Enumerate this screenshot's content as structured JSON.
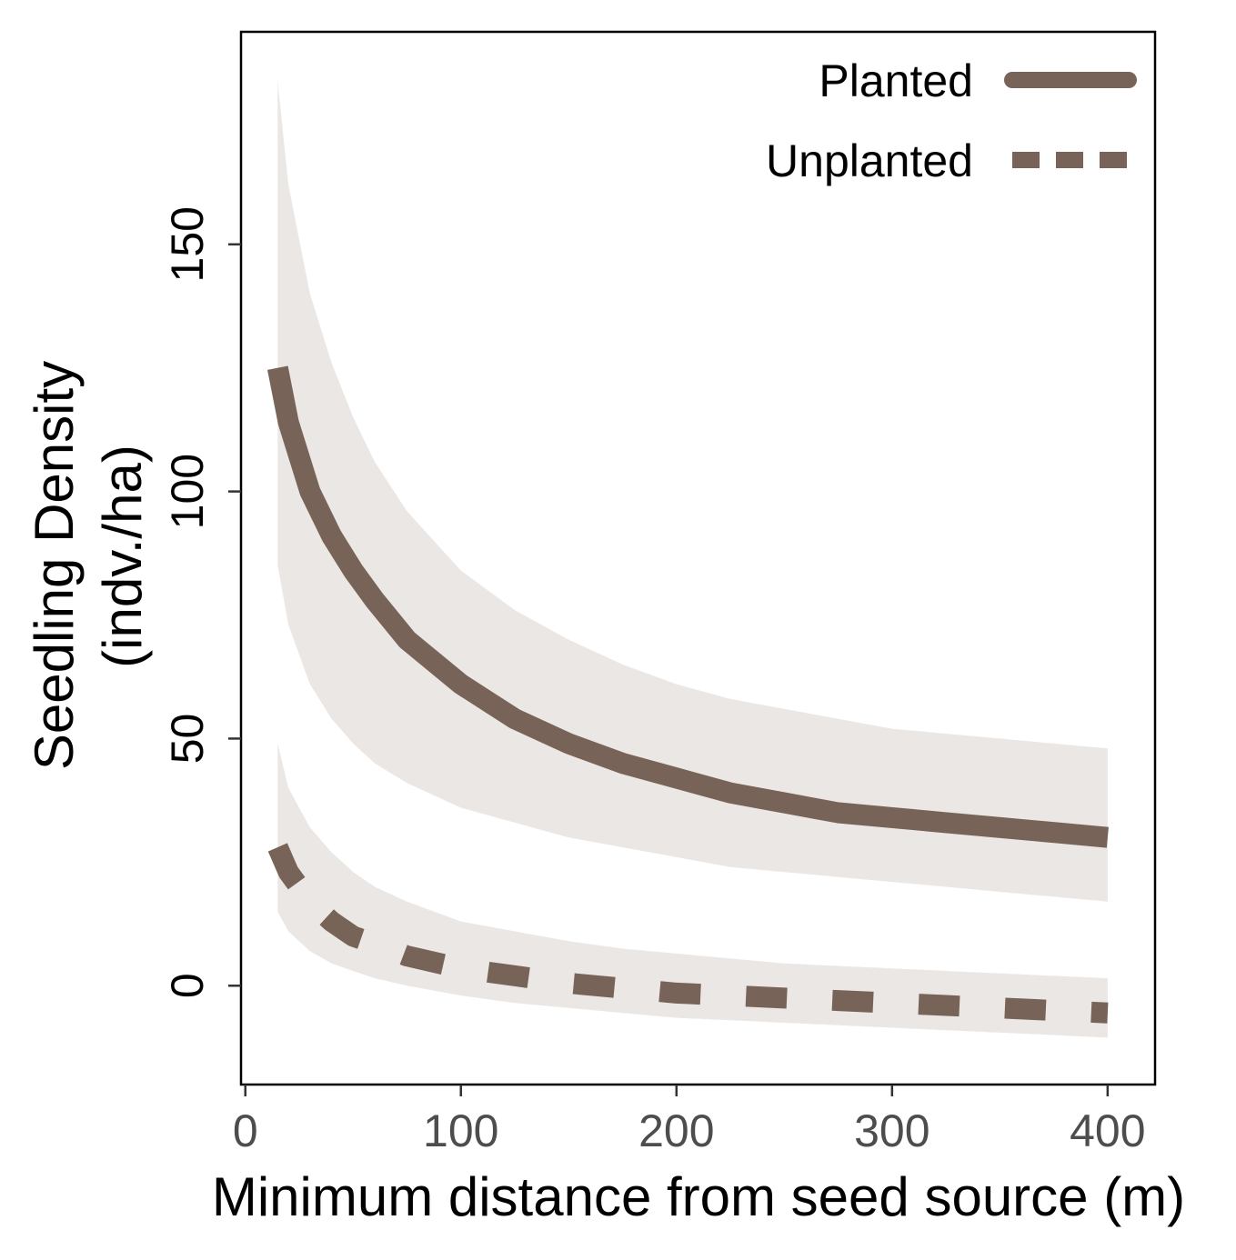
{
  "chart_data": {
    "type": "line",
    "title": "",
    "xlabel": "Minimum distance from seed source (m)",
    "ylabel": [
      "Seedling Density",
      "(indv./ha)"
    ],
    "xlim": [
      -2,
      422
    ],
    "ylim": [
      -20,
      193
    ],
    "xticks": [
      0,
      100,
      200,
      300,
      400
    ],
    "yticks": [
      0,
      50,
      100,
      150
    ],
    "grid": false,
    "legend_position": "top-right",
    "colors": {
      "line": "#776357",
      "band": "#ebe7e4",
      "x_tick_text": "#4d4d4d",
      "y_tick_text": "#000000"
    },
    "series": [
      {
        "name": "Planted",
        "style": "solid",
        "x": [
          15,
          20,
          30,
          40,
          50,
          60,
          75,
          100,
          125,
          150,
          175,
          200,
          225,
          250,
          275,
          300,
          325,
          350,
          375,
          400
        ],
        "y": [
          125,
          114,
          100,
          91,
          84,
          78,
          70,
          61,
          54,
          49,
          45,
          42,
          39,
          37,
          35,
          34,
          33,
          32,
          31,
          30
        ],
        "lower": [
          85,
          73,
          61,
          54,
          49,
          45,
          41,
          36,
          33,
          30,
          28,
          26,
          24,
          23,
          22,
          21,
          20,
          19,
          18,
          17
        ],
        "upper": [
          183,
          162,
          140,
          126,
          115,
          106,
          96,
          84,
          76,
          70,
          65,
          61,
          58,
          56,
          54,
          52,
          51,
          50,
          49,
          48
        ]
      },
      {
        "name": "Unplanted",
        "style": "dashed",
        "x": [
          15,
          20,
          30,
          40,
          50,
          60,
          75,
          100,
          125,
          150,
          175,
          200,
          225,
          250,
          275,
          300,
          325,
          350,
          375,
          400
        ],
        "y": [
          28,
          23,
          17,
          13,
          10,
          8.5,
          6,
          3.5,
          2,
          0.5,
          -0.5,
          -1.5,
          -2,
          -2.5,
          -3,
          -3.5,
          -4,
          -4.5,
          -5,
          -5.5
        ],
        "lower": [
          15,
          11,
          7,
          4.5,
          3,
          1.5,
          0,
          -2,
          -3.5,
          -4.5,
          -5.5,
          -6.5,
          -7,
          -7.5,
          -8,
          -8.5,
          -9,
          -9.5,
          -10,
          -10.5
        ],
        "upper": [
          49,
          40,
          32,
          27,
          23,
          20,
          17,
          13,
          11,
          9,
          7.5,
          6.5,
          5.5,
          4.5,
          4,
          3.5,
          3,
          2.5,
          2,
          1.5
        ]
      }
    ]
  }
}
